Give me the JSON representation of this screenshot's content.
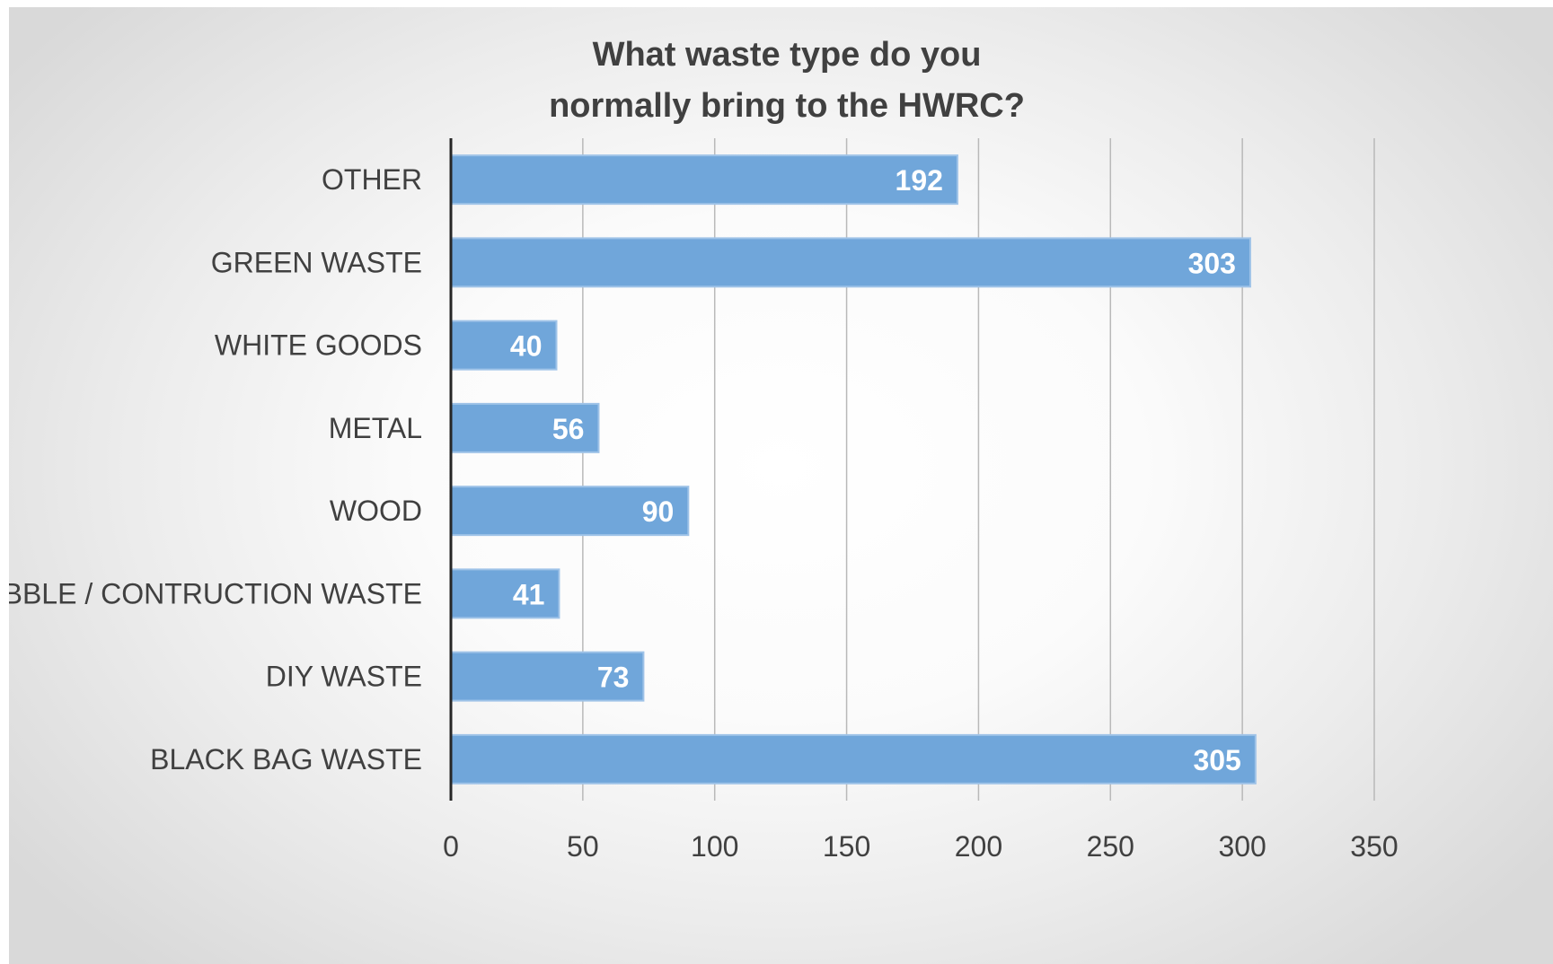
{
  "chart_data": {
    "type": "bar",
    "orientation": "horizontal",
    "title": "What waste type do you normally bring to the HWRC?",
    "title_lines": [
      "What waste type do you",
      "normally bring to the HWRC?"
    ],
    "categories": [
      "OTHER",
      "GREEN WASTE",
      "WHITE GOODS",
      "METAL",
      "WOOD",
      "RUBBLE / CONTRUCTION WASTE",
      "DIY WASTE",
      "BLACK BAG WASTE"
    ],
    "values": [
      192,
      303,
      40,
      56,
      90,
      41,
      73,
      305
    ],
    "data_labels": [
      "192",
      "303",
      "40",
      "56",
      "90",
      "41",
      "73",
      "305"
    ],
    "xlabel": "",
    "ylabel": "",
    "xlim": [
      0,
      350
    ],
    "x_ticks": [
      0,
      50,
      100,
      150,
      200,
      250,
      300,
      350
    ],
    "x_tick_labels": [
      "0",
      "50",
      "100",
      "150",
      "200",
      "250",
      "300",
      "350"
    ],
    "grid": "vertical",
    "legend": "none",
    "colors": {
      "bar": "#70a6da",
      "bar_edge": "#9fc3e8",
      "gridline": "#b9b9b9",
      "axis": "#262626",
      "text": "#404040",
      "data_label": "#ffffff"
    }
  }
}
